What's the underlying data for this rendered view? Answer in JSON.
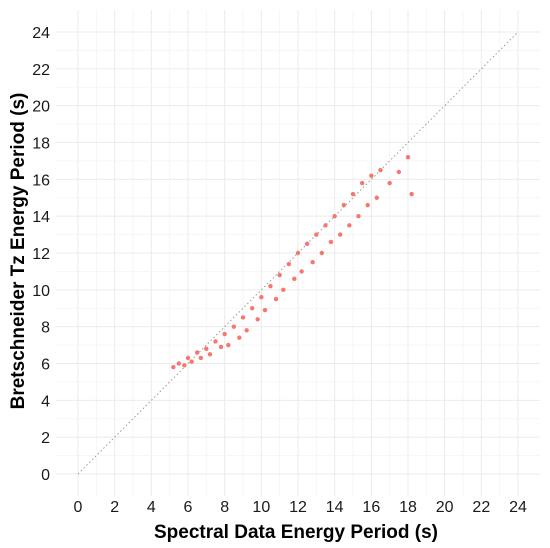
{
  "chart_data": {
    "type": "scatter",
    "title": "",
    "xlabel": "Spectral Data Energy Period (s)",
    "ylabel": "Bretschneider Tz Energy Period (s)",
    "xlim": [
      0,
      24
    ],
    "ylim": [
      0,
      24
    ],
    "x_ticks": [
      "0",
      "2",
      "4",
      "6",
      "8",
      "10",
      "12",
      "14",
      "16",
      "18",
      "20",
      "22",
      "24"
    ],
    "y_ticks": [
      "0",
      "2",
      "4",
      "6",
      "8",
      "10",
      "12",
      "14",
      "16",
      "18",
      "20",
      "22",
      "24"
    ],
    "grid": true,
    "reference_line": {
      "style": "dotted",
      "from": [
        0,
        0
      ],
      "to": [
        24,
        24
      ]
    },
    "point_color": "#f8766d",
    "series": [
      {
        "points": [
          [
            5.2,
            5.8
          ],
          [
            5.5,
            6.0
          ],
          [
            5.8,
            5.9
          ],
          [
            6.0,
            6.3
          ],
          [
            6.2,
            6.1
          ],
          [
            6.5,
            6.6
          ],
          [
            6.7,
            6.3
          ],
          [
            7.0,
            6.8
          ],
          [
            7.2,
            6.5
          ],
          [
            7.5,
            7.2
          ],
          [
            7.8,
            6.9
          ],
          [
            8.0,
            7.6
          ],
          [
            8.2,
            7.0
          ],
          [
            8.5,
            8.0
          ],
          [
            8.8,
            7.4
          ],
          [
            9.0,
            8.5
          ],
          [
            9.2,
            7.8
          ],
          [
            9.5,
            9.0
          ],
          [
            9.8,
            8.4
          ],
          [
            10.0,
            9.6
          ],
          [
            10.2,
            8.9
          ],
          [
            10.5,
            10.2
          ],
          [
            10.8,
            9.5
          ],
          [
            11.0,
            10.8
          ],
          [
            11.2,
            10.0
          ],
          [
            11.5,
            11.4
          ],
          [
            11.8,
            10.6
          ],
          [
            12.0,
            12.0
          ],
          [
            12.2,
            11.0
          ],
          [
            12.5,
            12.5
          ],
          [
            12.8,
            11.5
          ],
          [
            13.0,
            13.0
          ],
          [
            13.3,
            12.0
          ],
          [
            13.5,
            13.5
          ],
          [
            13.8,
            12.6
          ],
          [
            14.0,
            14.0
          ],
          [
            14.3,
            13.0
          ],
          [
            14.5,
            14.6
          ],
          [
            14.8,
            13.5
          ],
          [
            15.0,
            15.2
          ],
          [
            15.3,
            14.0
          ],
          [
            15.5,
            15.8
          ],
          [
            15.8,
            14.6
          ],
          [
            16.0,
            16.2
          ],
          [
            16.3,
            15.0
          ],
          [
            16.5,
            16.5
          ],
          [
            17.0,
            15.8
          ],
          [
            17.5,
            16.4
          ],
          [
            18.0,
            17.2
          ],
          [
            18.2,
            15.2
          ]
        ]
      }
    ]
  }
}
